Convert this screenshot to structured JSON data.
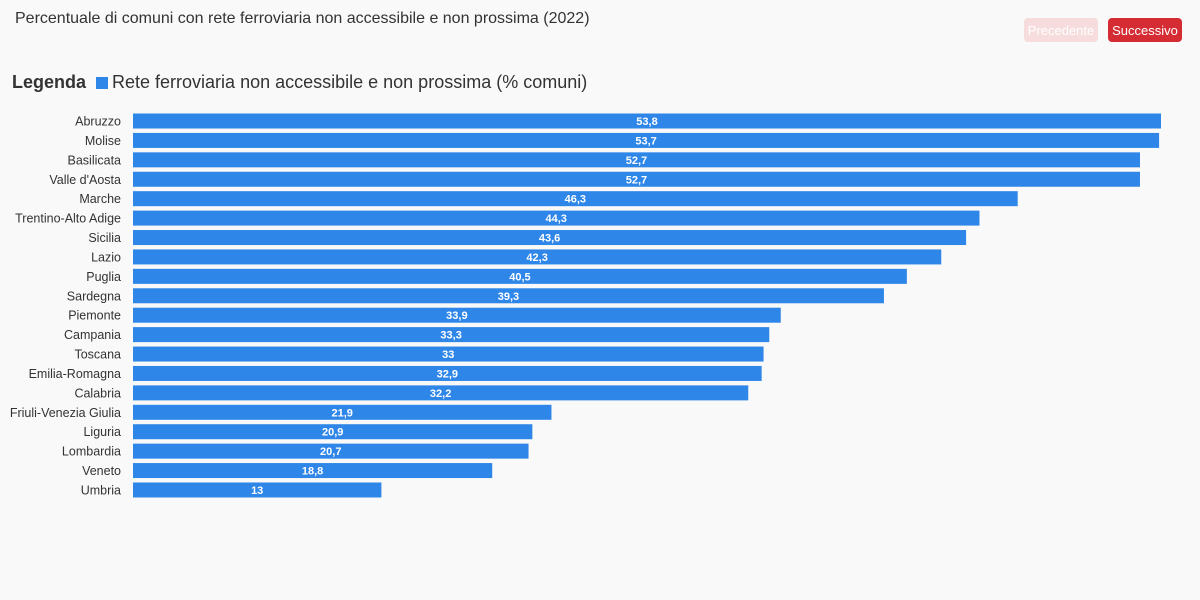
{
  "header": {
    "title": "Percentuale di comuni con rete ferroviaria non accessibile e non prossima (2022)",
    "prev_label": "Precedente",
    "next_label": "Successivo"
  },
  "legend": {
    "title": "Legenda",
    "label": "Rete ferroviaria non accessibile e non prossima (% comuni)"
  },
  "colors": {
    "bar": "#2e86e8",
    "next_button": "#d52b33",
    "prev_button": "#f6dcdc"
  },
  "chart_data": {
    "type": "bar",
    "orientation": "horizontal",
    "title": "Percentuale di comuni con rete ferroviaria non accessibile e non prossima (2022)",
    "xlabel": "",
    "ylabel": "",
    "categories": [
      "Abruzzo",
      "Molise",
      "Basilicata",
      "Valle d'Aosta",
      "Marche",
      "Trentino-Alto Adige",
      "Sicilia",
      "Lazio",
      "Puglia",
      "Sardegna",
      "Piemonte",
      "Campania",
      "Toscana",
      "Emilia-Romagna",
      "Calabria",
      "Friuli-Venezia Giulia",
      "Liguria",
      "Lombardia",
      "Veneto",
      "Umbria"
    ],
    "series": [
      {
        "name": "Rete ferroviaria non accessibile e non prossima (% comuni)",
        "values": [
          53.8,
          53.7,
          52.7,
          52.7,
          46.3,
          44.3,
          43.6,
          42.3,
          40.5,
          39.3,
          33.9,
          33.3,
          33,
          32.9,
          32.2,
          21.9,
          20.9,
          20.7,
          18.8,
          13
        ]
      }
    ],
    "value_labels": [
      "53,8",
      "53,7",
      "52,7",
      "52,7",
      "46,3",
      "44,3",
      "43,6",
      "42,3",
      "40,5",
      "39,3",
      "33,9",
      "33,3",
      "33",
      "32,9",
      "32,2",
      "21,9",
      "20,9",
      "20,7",
      "18,8",
      "13"
    ],
    "xlim": [
      0,
      53.8
    ],
    "grid": false,
    "legend_position": "top-left"
  }
}
